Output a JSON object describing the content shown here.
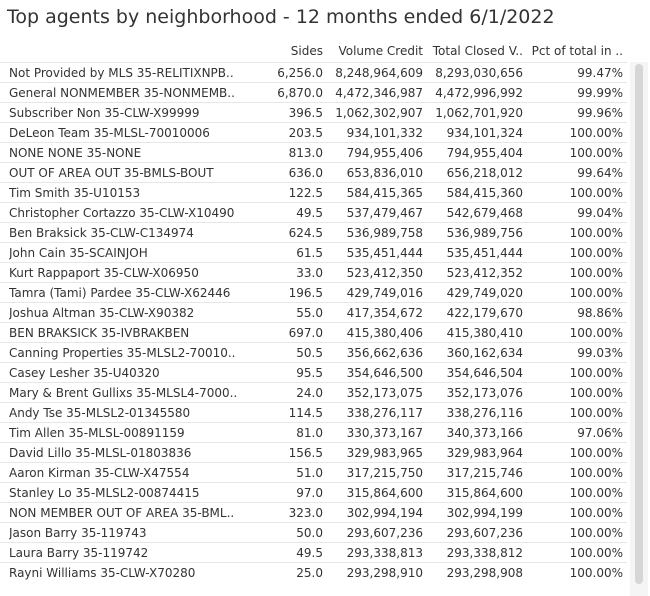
{
  "title": "Top agents by neighborhood - 12 months ended 6/1/2022",
  "columns": [
    "Sides",
    "Volume Credit",
    "Total Closed V..",
    "Pct of total in .."
  ],
  "rows": [
    [
      "Not Provided by MLS 35-RELITIXNPB..",
      "6,256.0",
      "8,248,964,609",
      "8,293,030,656",
      "99.47%"
    ],
    [
      "General NONMEMBER 35-NONMEMB..",
      "6,870.0",
      "4,472,346,987",
      "4,472,996,992",
      "99.99%"
    ],
    [
      "Subscriber Non 35-CLW-X99999",
      "396.5",
      "1,062,302,907",
      "1,062,701,920",
      "99.96%"
    ],
    [
      "DeLeon Team 35-MLSL-70010006",
      "203.5",
      "934,101,332",
      "934,101,324",
      "100.00%"
    ],
    [
      "NONE NONE 35-NONE",
      "813.0",
      "794,955,406",
      "794,955,404",
      "100.00%"
    ],
    [
      "OUT OF AREA OUT 35-BMLS-BOUT",
      "636.0",
      "653,836,010",
      "656,218,012",
      "99.64%"
    ],
    [
      "Tim Smith 35-U10153",
      "122.5",
      "584,415,365",
      "584,415,360",
      "100.00%"
    ],
    [
      "Christopher Cortazzo 35-CLW-X10490",
      "49.5",
      "537,479,467",
      "542,679,468",
      "99.04%"
    ],
    [
      "Ben Braksick 35-CLW-C134974",
      "624.5",
      "536,989,758",
      "536,989,756",
      "100.00%"
    ],
    [
      "John Cain 35-SCAINJOH",
      "61.5",
      "535,451,444",
      "535,451,444",
      "100.00%"
    ],
    [
      "Kurt Rappaport 35-CLW-X06950",
      "33.0",
      "523,412,350",
      "523,412,352",
      "100.00%"
    ],
    [
      "Tamra (Tami) Pardee 35-CLW-X62446",
      "196.5",
      "429,749,016",
      "429,749,020",
      "100.00%"
    ],
    [
      "Joshua Altman 35-CLW-X90382",
      "55.0",
      "417,354,672",
      "422,179,670",
      "98.86%"
    ],
    [
      "BEN BRAKSICK 35-IVBRAKBEN",
      "697.0",
      "415,380,406",
      "415,380,410",
      "100.00%"
    ],
    [
      "Canning Properties 35-MLSL2-70010..",
      "50.5",
      "356,662,636",
      "360,162,634",
      "99.03%"
    ],
    [
      "Casey Lesher 35-U40320",
      "95.5",
      "354,646,500",
      "354,646,504",
      "100.00%"
    ],
    [
      "Mary & Brent Gullixs 35-MLSL4-7000..",
      "24.0",
      "352,173,075",
      "352,173,076",
      "100.00%"
    ],
    [
      "Andy Tse 35-MLSL2-01345580",
      "114.5",
      "338,276,117",
      "338,276,116",
      "100.00%"
    ],
    [
      "Tim Allen 35-MLSL-00891159",
      "81.0",
      "330,373,167",
      "340,373,166",
      "97.06%"
    ],
    [
      "David Lillo 35-MLSL-01803836",
      "156.5",
      "329,983,965",
      "329,983,964",
      "100.00%"
    ],
    [
      "Aaron Kirman 35-CLW-X47554",
      "51.0",
      "317,215,750",
      "317,215,746",
      "100.00%"
    ],
    [
      "Stanley Lo 35-MLSL2-00874415",
      "97.0",
      "315,864,600",
      "315,864,600",
      "100.00%"
    ],
    [
      "NON MEMBER OUT OF AREA 35-BML..",
      "323.0",
      "302,994,194",
      "302,994,199",
      "100.00%"
    ],
    [
      "Jason Barry 35-119743",
      "50.0",
      "293,607,236",
      "293,607,236",
      "100.00%"
    ],
    [
      "Laura Barry 35-119742",
      "49.5",
      "293,338,813",
      "293,338,812",
      "100.00%"
    ],
    [
      "Rayni Williams 35-CLW-X70280",
      "25.0",
      "293,298,910",
      "293,298,908",
      "100.00%"
    ]
  ]
}
